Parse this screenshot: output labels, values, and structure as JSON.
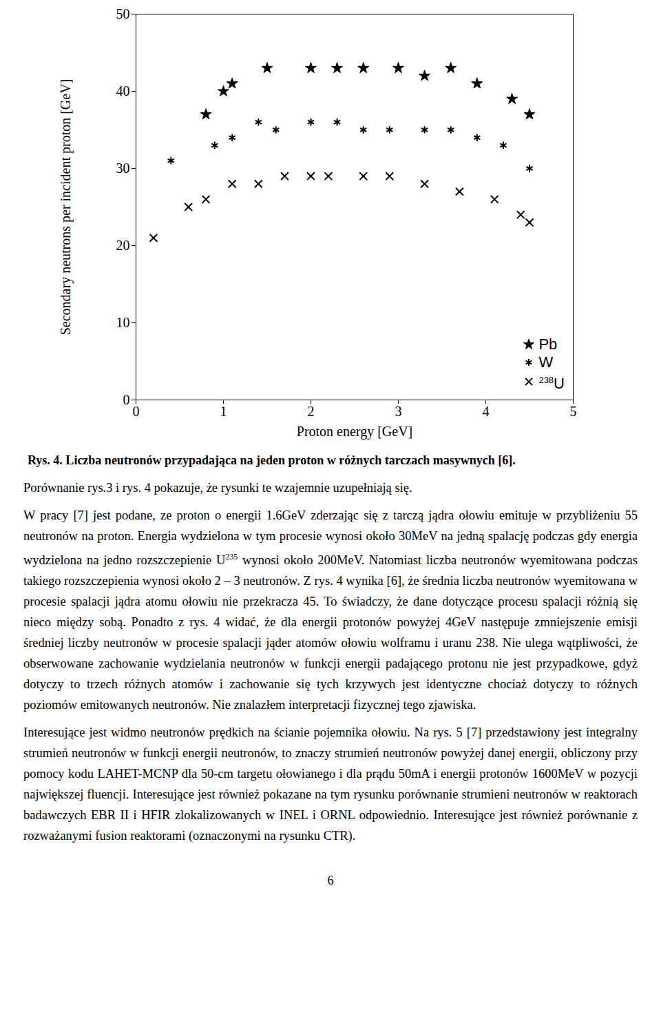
{
  "chart_data": {
    "type": "scatter",
    "xlabel": "Proton energy [GeV]",
    "ylabel": "Secondary neutrons per incident proton [GeV]",
    "xlim": [
      0,
      5
    ],
    "xticks": [
      0,
      1,
      2,
      3,
      4,
      5
    ],
    "ylim": [
      0,
      50
    ],
    "yticks": [
      0,
      10,
      20,
      30,
      40,
      50
    ],
    "grid": false,
    "legend": "lower right",
    "series": [
      {
        "name": "Pb",
        "color": "#000000",
        "marker": "star",
        "x": [
          0.8,
          1.0,
          1.1,
          1.5,
          2.0,
          2.3,
          2.6,
          3.0,
          3.3,
          3.6,
          3.9,
          4.3,
          4.5
        ],
        "values": [
          37,
          40,
          41,
          43,
          43,
          43,
          43,
          43,
          42,
          43,
          41,
          39,
          37
        ]
      },
      {
        "name": "W",
        "color": "#000000",
        "marker": "asterisk",
        "x": [
          0.4,
          0.9,
          1.1,
          1.4,
          1.6,
          2.0,
          2.3,
          2.6,
          2.9,
          3.3,
          3.6,
          3.9,
          4.2,
          4.5
        ],
        "values": [
          31,
          33,
          34,
          36,
          35,
          36,
          36,
          35,
          35,
          35,
          35,
          34,
          33,
          30
        ]
      },
      {
        "name": "238U",
        "color": "#000000",
        "marker": "times",
        "x": [
          0.2,
          0.6,
          0.8,
          1.1,
          1.4,
          1.7,
          2.0,
          2.2,
          2.6,
          2.9,
          3.3,
          3.7,
          4.1,
          4.4,
          4.5
        ],
        "values": [
          21,
          25,
          26,
          28,
          28,
          29,
          29,
          29,
          29,
          29,
          28,
          27,
          26,
          24,
          23
        ]
      }
    ]
  },
  "document": {
    "caption": "Rys. 4. Liczba neutronów przypadająca na jeden proton w różnych tarczach masywnych [6].",
    "paragraphs": [
      [
        "Porównanie rys.3 i rys. 4 pokazuje, że rysunki te wzajemnie uzupełniają się."
      ],
      [
        "W pracy [7] jest podane, ze proton o energii 1.6GeV zderzając się z tarczą jądra ołowiu emituje w przybliżeniu 55 neutronów na proton. Energia wydzielona w tym procesie wynosi około 30MeV na jedną spalację podczas gdy energia wydzielona na jedno rozszczepienie U",
        {
          "sup": "235"
        },
        " wynosi około 200MeV. Natomiast liczba neutronów wyemitowana podczas takiego rozszczepienia wynosi około 2 – 3 neutronów. Z rys. 4 wynika [6], że średnia liczba neutronów wyemitowana w procesie spalacji jądra atomu ołowiu nie przekracza 45. To świadczy, że dane dotyczące procesu spalacji różnią się nieco między sobą. Ponadto z rys. 4 widać, że dla energii protonów powyżej 4GeV następuje zmniejszenie emisji średniej liczby neutronów w procesie spalacji jąder atomów ołowiu wolframu i uranu 238. Nie ulega wątpliwości, że obserwowane zachowanie wydzielania neutronów w funkcji energii padającego protonu nie jest przypadkowe, gdyż dotyczy to trzech różnych atomów i zachowanie się tych krzywych jest identyczne chociaż dotyczy to różnych poziomów emitowanych neutronów. Nie znalazłem interpretacji fizycznej tego zjawiska."
      ],
      [
        "Interesujące jest widmo neutronów prędkich na ścianie pojemnika ołowiu. Na rys. 5 [7] przedstawiony jest integralny strumień neutronów w funkcji energii neutronów, to znaczy strumień neutronów powyżej danej energii, obliczony przy pomocy kodu LAHET-MCNP dla 50-cm targetu ołowianego i dla prądu 50mA i energii protonów 1600MeV w pozycji największej fluencji. Interesujące jest również pokazane na tym rysunku porównanie strumieni neutronów w reaktorach badawczych EBR II i HFIR zlokalizowanych w INEL i ORNL odpowiednio. Interesujące jest również porównanie z rozważanymi fusion reaktorami (oznaczonymi na rysunku CTR)."
      ]
    ],
    "page_number": "6"
  }
}
